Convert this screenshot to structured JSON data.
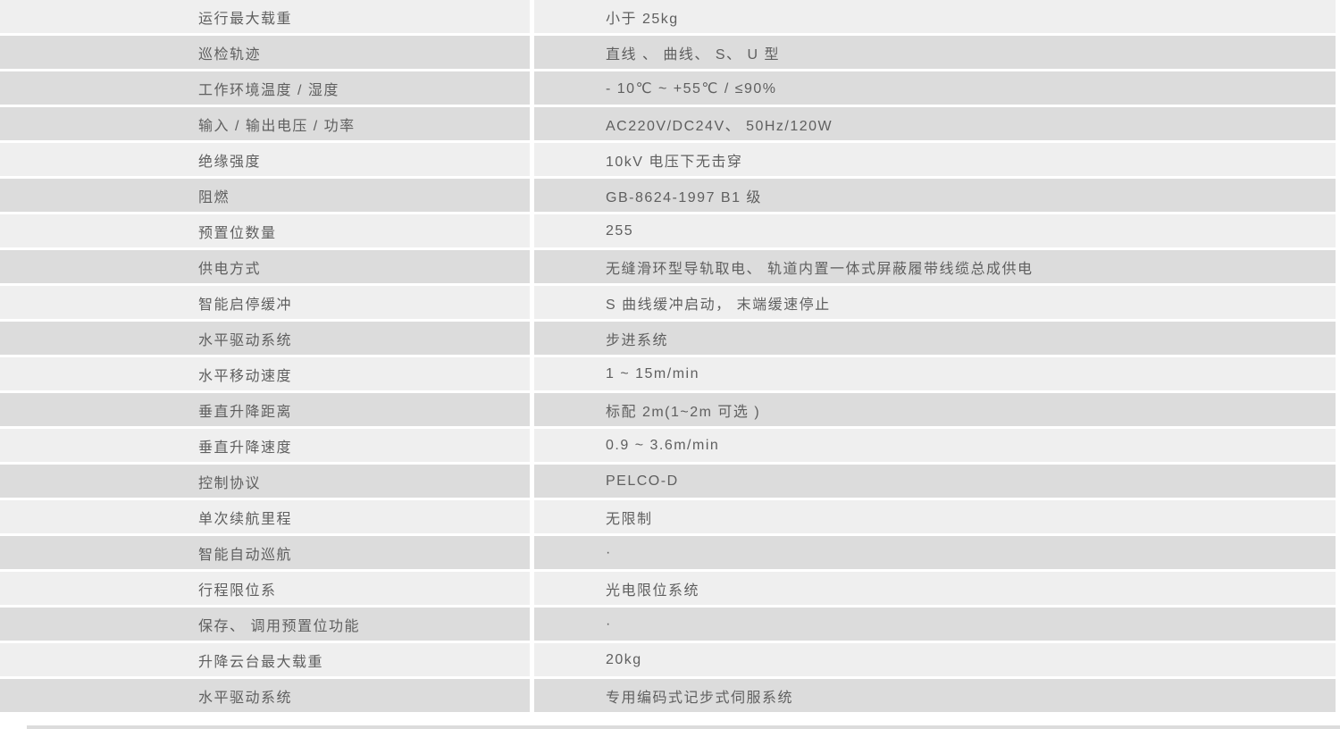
{
  "colors": {
    "page_background": "#ffffff",
    "row_light": "#efefef",
    "row_dark": "#dcdcdc",
    "text": "#5f5f5f"
  },
  "table": {
    "rows": [
      {
        "label": "运行最大载重",
        "value": "小于 25kg",
        "shade": "light"
      },
      {
        "label": "巡检轨迹",
        "value": "直线 、 曲线、 S、 U 型",
        "shade": "dark"
      },
      {
        "label": "工作环境温度 / 湿度",
        "value": "- 10℃ ~ +55℃ / ≤90%",
        "shade": "dark"
      },
      {
        "label": "输入 / 输出电压 / 功率",
        "value": "AC220V/DC24V、 50Hz/120W",
        "shade": "dark"
      },
      {
        "label": "绝缘强度",
        "value": "10kV 电压下无击穿",
        "shade": "light"
      },
      {
        "label": "阻燃",
        "value": "GB-8624-1997 B1 级",
        "shade": "dark"
      },
      {
        "label": "预置位数量",
        "value": "255",
        "shade": "light"
      },
      {
        "label": "供电方式",
        "value": "无缝滑环型导轨取电、 轨道内置一体式屏蔽履带线缆总成供电",
        "shade": "dark"
      },
      {
        "label": "智能启停缓冲",
        "value": "S 曲线缓冲启动， 末端缓速停止",
        "shade": "light"
      },
      {
        "label": "水平驱动系统",
        "value": "步进系统",
        "shade": "dark"
      },
      {
        "label": "水平移动速度",
        "value": "1 ~ 15m/min",
        "shade": "light"
      },
      {
        "label": "垂直升降距离",
        "value": "标配 2m(1~2m 可选 )",
        "shade": "dark"
      },
      {
        "label": "垂直升降速度",
        "value": "0.9 ~ 3.6m/min",
        "shade": "light"
      },
      {
        "label": "控制协议",
        "value": "PELCO-D",
        "shade": "dark"
      },
      {
        "label": "单次续航里程",
        "value": "无限制",
        "shade": "light"
      },
      {
        "label": "智能自动巡航",
        "value": "·",
        "shade": "dark"
      },
      {
        "label": "行程限位系",
        "value": "光电限位系统",
        "shade": "light"
      },
      {
        "label": "保存、 调用预置位功能",
        "value": "·",
        "shade": "dark"
      },
      {
        "label": "升降云台最大载重",
        "value": "20kg",
        "shade": "light"
      },
      {
        "label": "水平驱动系统",
        "value": "专用编码式记步式伺服系统",
        "shade": "dark"
      }
    ]
  }
}
